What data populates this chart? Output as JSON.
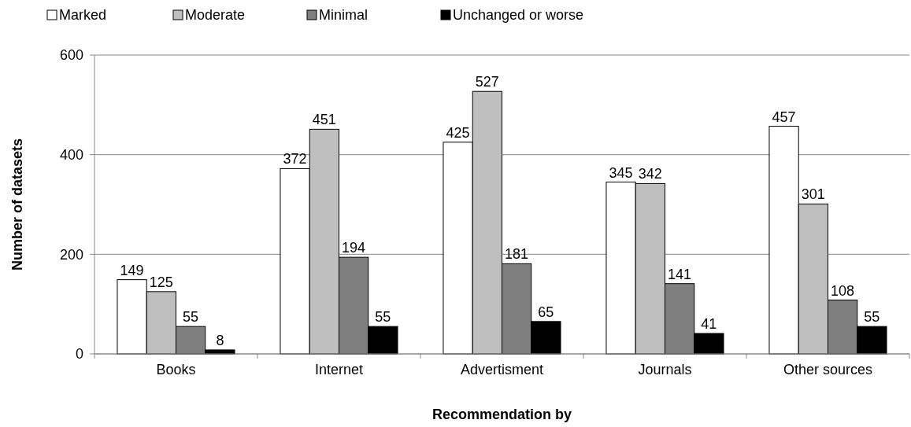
{
  "chart_data": {
    "type": "bar",
    "xlabel": "Recommendation by",
    "ylabel": "Number of datasets",
    "categories": [
      "Books",
      "Internet",
      "Advertisment",
      "Journals",
      "Other sources"
    ],
    "series": [
      {
        "name": "Marked",
        "color": "#ffffff",
        "values": [
          149,
          372,
          425,
          345,
          457
        ]
      },
      {
        "name": "Moderate",
        "color": "#bfbfbf",
        "values": [
          125,
          451,
          527,
          342,
          301
        ]
      },
      {
        "name": "Minimal",
        "color": "#7f7f7f",
        "values": [
          55,
          194,
          181,
          141,
          108
        ]
      },
      {
        "name": "Unchanged or worse",
        "color": "#000000",
        "values": [
          8,
          55,
          65,
          41,
          55
        ]
      }
    ],
    "ylim": [
      0,
      600
    ],
    "yticks": [
      0,
      200,
      400,
      600
    ],
    "grid": "y",
    "legend": "top left",
    "data_labels": true
  }
}
